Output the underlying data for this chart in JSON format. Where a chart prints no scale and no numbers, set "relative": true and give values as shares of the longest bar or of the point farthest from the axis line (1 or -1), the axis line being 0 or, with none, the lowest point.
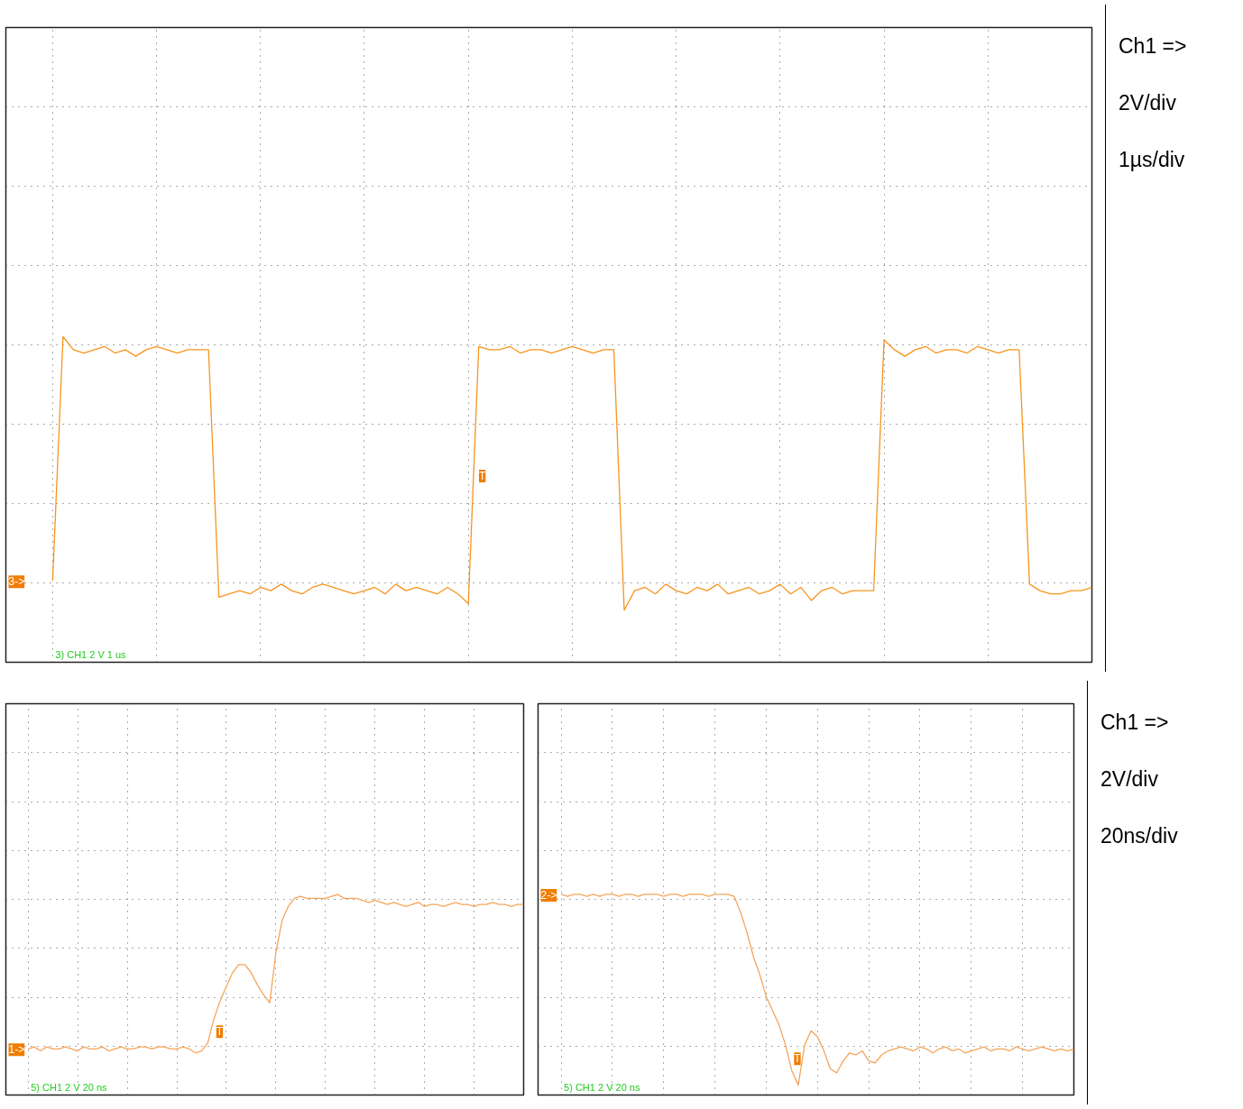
{
  "chart_data": [
    {
      "type": "line",
      "relative": true,
      "grid": true,
      "categories": [
        null,
        null,
        null,
        null,
        null,
        null,
        null,
        null,
        null,
        null,
        null,
        null,
        null,
        null,
        null,
        null,
        null,
        null,
        null,
        null,
        null,
        null,
        null,
        null,
        null,
        null,
        null,
        null,
        null,
        null,
        null,
        null,
        null,
        null,
        null,
        null,
        null,
        null,
        null,
        null,
        null,
        null,
        null,
        null,
        null,
        null,
        null,
        null,
        null,
        null,
        null,
        null,
        null,
        null,
        null,
        null,
        null,
        null,
        null,
        null,
        null,
        null,
        null,
        null,
        null,
        null,
        null,
        null,
        null,
        null,
        null,
        null,
        null,
        null,
        null,
        null,
        null,
        null,
        null,
        null,
        null,
        null,
        null,
        null,
        null,
        null,
        null,
        null,
        null,
        null,
        null,
        null,
        null,
        null,
        null,
        null,
        null,
        null,
        null,
        null,
        null
      ],
      "series": [
        {
          "color": "#f7941d",
          "values": [
            0.25,
            1.0,
            0.96,
            0.95,
            0.96,
            0.97,
            0.95,
            0.96,
            0.94,
            0.96,
            0.97,
            0.96,
            0.95,
            0.96,
            0.96,
            0.96,
            0.2,
            0.21,
            0.22,
            0.21,
            0.23,
            0.22,
            0.24,
            0.22,
            0.21,
            0.23,
            0.24,
            0.23,
            0.22,
            0.21,
            0.22,
            0.23,
            0.21,
            0.24,
            0.22,
            0.23,
            0.22,
            0.21,
            0.23,
            0.21,
            0.18,
            0.97,
            0.96,
            0.96,
            0.97,
            0.95,
            0.96,
            0.96,
            0.95,
            0.96,
            0.97,
            0.96,
            0.95,
            0.96,
            0.96,
            0.16,
            0.22,
            0.23,
            0.21,
            0.24,
            0.22,
            0.21,
            0.23,
            0.22,
            0.24,
            0.21,
            0.22,
            0.23,
            0.21,
            0.22,
            0.24,
            0.21,
            0.23,
            0.19,
            0.22,
            0.23,
            0.21,
            0.22,
            0.22,
            0.22,
            0.99,
            0.96,
            0.94,
            0.96,
            0.97,
            0.95,
            0.96,
            0.96,
            0.95,
            0.97,
            0.96,
            0.95,
            0.96,
            0.96,
            0.24,
            0.22,
            0.21,
            0.21,
            0.22,
            0.22,
            0.23
          ]
        }
      ],
      "annotations": [
        "3) CH1 2 V 1 us",
        "3->",
        "T",
        "Ch1 =>",
        "2V/div",
        "1µs/div"
      ]
    },
    {
      "type": "line",
      "relative": true,
      "grid": true,
      "categories": [
        null,
        null,
        null,
        null,
        null,
        null,
        null,
        null,
        null,
        null,
        null,
        null,
        null,
        null,
        null,
        null,
        null,
        null,
        null,
        null,
        null,
        null,
        null,
        null,
        null,
        null,
        null,
        null,
        null,
        null,
        null,
        null,
        null,
        null,
        null,
        null,
        null,
        null,
        null,
        null,
        null,
        null,
        null,
        null,
        null,
        null,
        null,
        null,
        null,
        null,
        null,
        null,
        null,
        null,
        null,
        null,
        null,
        null,
        null,
        null,
        null,
        null,
        null,
        null,
        null,
        null,
        null,
        null,
        null,
        null,
        null,
        null,
        null,
        null,
        null,
        null,
        null,
        null,
        null,
        null,
        null
      ],
      "series": [
        {
          "color": "#f5a55a",
          "values": [
            0.23,
            0.24,
            0.22,
            0.24,
            0.23,
            0.23,
            0.24,
            0.23,
            0.22,
            0.24,
            0.23,
            0.23,
            0.24,
            0.22,
            0.23,
            0.24,
            0.23,
            0.23,
            0.24,
            0.24,
            0.23,
            0.24,
            0.24,
            0.23,
            0.23,
            0.24,
            0.23,
            0.21,
            0.22,
            0.26,
            0.38,
            0.47,
            0.54,
            0.61,
            0.65,
            0.65,
            0.61,
            0.55,
            0.5,
            0.46,
            0.71,
            0.87,
            0.94,
            0.98,
            0.99,
            0.98,
            0.98,
            0.98,
            0.98,
            0.99,
            1.0,
            0.98,
            0.98,
            0.98,
            0.97,
            0.96,
            0.97,
            0.96,
            0.95,
            0.96,
            0.95,
            0.94,
            0.95,
            0.96,
            0.94,
            0.95,
            0.95,
            0.94,
            0.95,
            0.96,
            0.95,
            0.95,
            0.94,
            0.95,
            0.95,
            0.96,
            0.95,
            0.95,
            0.94,
            0.95,
            0.95
          ]
        }
      ],
      "annotations": [
        "5) CH1 2 V 20 ns",
        "1->",
        "T"
      ]
    },
    {
      "type": "line",
      "relative": true,
      "grid": true,
      "categories": [
        null,
        null,
        null,
        null,
        null,
        null,
        null,
        null,
        null,
        null,
        null,
        null,
        null,
        null,
        null,
        null,
        null,
        null,
        null,
        null,
        null,
        null,
        null,
        null,
        null,
        null,
        null,
        null,
        null,
        null,
        null,
        null,
        null,
        null,
        null,
        null,
        null,
        null,
        null,
        null,
        null,
        null,
        null,
        null,
        null,
        null,
        null,
        null,
        null,
        null,
        null,
        null,
        null,
        null,
        null,
        null,
        null,
        null,
        null,
        null,
        null,
        null,
        null,
        null,
        null,
        null,
        null,
        null,
        null,
        null,
        null,
        null,
        null,
        null,
        null,
        null,
        null,
        null,
        null,
        null,
        null
      ],
      "series": [
        {
          "color": "#f5a55a",
          "values": [
            1.0,
            0.99,
            1.0,
            1.0,
            0.99,
            1.0,
            0.99,
            1.0,
            1.0,
            0.99,
            1.0,
            1.0,
            0.99,
            1.0,
            1.0,
            1.0,
            0.99,
            1.0,
            1.0,
            0.99,
            1.0,
            1.0,
            1.0,
            0.99,
            1.0,
            1.0,
            1.0,
            0.99,
            0.91,
            0.81,
            0.69,
            0.6,
            0.49,
            0.42,
            0.35,
            0.25,
            0.12,
            0.05,
            0.25,
            0.32,
            0.29,
            0.22,
            0.13,
            0.11,
            0.17,
            0.21,
            0.2,
            0.22,
            0.17,
            0.16,
            0.2,
            0.22,
            0.23,
            0.24,
            0.23,
            0.22,
            0.24,
            0.23,
            0.21,
            0.23,
            0.24,
            0.22,
            0.23,
            0.21,
            0.22,
            0.23,
            0.24,
            0.22,
            0.23,
            0.23,
            0.22,
            0.24,
            0.23,
            0.22,
            0.23,
            0.24,
            0.23,
            0.22,
            0.23,
            0.22,
            0.23
          ]
        }
      ],
      "annotations": [
        "5) CH1 2 V 20 ns",
        "2->",
        "T",
        "Ch1 =>",
        "2V/div",
        "20ns/div"
      ]
    }
  ]
}
